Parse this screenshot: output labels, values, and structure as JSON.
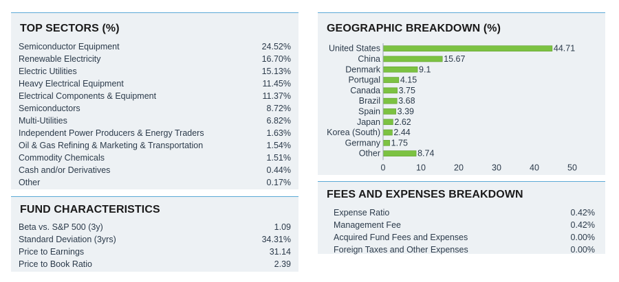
{
  "top_sectors": {
    "title": "TOP SECTORS (%)",
    "rows": [
      {
        "label": "Semiconductor Equipment",
        "value": "24.52%"
      },
      {
        "label": "Renewable Electricity",
        "value": "16.70%"
      },
      {
        "label": "Electric Utilities",
        "value": "15.13%"
      },
      {
        "label": "Heavy Electrical Equipment",
        "value": "11.45%"
      },
      {
        "label": "Electrical Components & Equipment",
        "value": "11.37%"
      },
      {
        "label": "Semiconductors",
        "value": "8.72%"
      },
      {
        "label": "Multi-Utilities",
        "value": "6.82%"
      },
      {
        "label": "Independent Power Producers & Energy Traders",
        "value": "1.63%"
      },
      {
        "label": "Oil & Gas Refining & Marketing & Transportation",
        "value": "1.54%"
      },
      {
        "label": "Commodity Chemicals",
        "value": "1.51%"
      },
      {
        "label": "Cash and/or Derivatives",
        "value": "0.44%"
      },
      {
        "label": "Other",
        "value": "0.17%"
      }
    ]
  },
  "fund_characteristics": {
    "title": "FUND CHARACTERISTICS",
    "rows": [
      {
        "label": "Beta vs. S&P 500 (3y)",
        "value": "1.09"
      },
      {
        "label": "Standard Deviation (3yrs)",
        "value": "34.31%"
      },
      {
        "label": "Price to Earnings",
        "value": "31.14"
      },
      {
        "label": "Price to Book Ratio",
        "value": "2.39"
      }
    ]
  },
  "geographic_breakdown": {
    "title": "GEOGRAPHIC BREAKDOWN (%)",
    "chart_data": {
      "type": "bar",
      "orientation": "horizontal",
      "categories": [
        "United States",
        "China",
        "Denmark",
        "Portugal",
        "Canada",
        "Brazil",
        "Spain",
        "Japan",
        "Korea (South)",
        "Germany",
        "Other"
      ],
      "values": [
        44.71,
        15.67,
        9.1,
        4.15,
        3.75,
        3.68,
        3.39,
        2.62,
        2.44,
        1.75,
        8.74
      ],
      "value_labels": [
        "44.71",
        "15.67",
        "9.1",
        "4.15",
        "3.75",
        "3.68",
        "3.39",
        "2.62",
        "2.44",
        "1.75",
        "8.74"
      ],
      "xlim": [
        0,
        50
      ],
      "x_ticks": [
        0,
        10,
        20,
        30,
        40,
        50
      ],
      "x_tick_labels": [
        "0",
        "10",
        "20",
        "30",
        "40",
        "50"
      ],
      "bar_color": "#7cc242",
      "grid": false,
      "legend": "none"
    }
  },
  "fees_expenses": {
    "title": "FEES AND EXPENSES BREAKDOWN",
    "rows": [
      {
        "label": "Expense Ratio",
        "value": "0.42%"
      },
      {
        "label": "Management Fee",
        "value": "0.42%"
      },
      {
        "label": "Acquired Fund Fees and Expenses",
        "value": "0.00%"
      },
      {
        "label": "Foreign Taxes and Other Expenses",
        "value": "0.00%"
      }
    ]
  },
  "colors": {
    "panel_background": "#edf1f4",
    "panel_accent": "#5aa9d6",
    "bar": "#7cc242"
  }
}
